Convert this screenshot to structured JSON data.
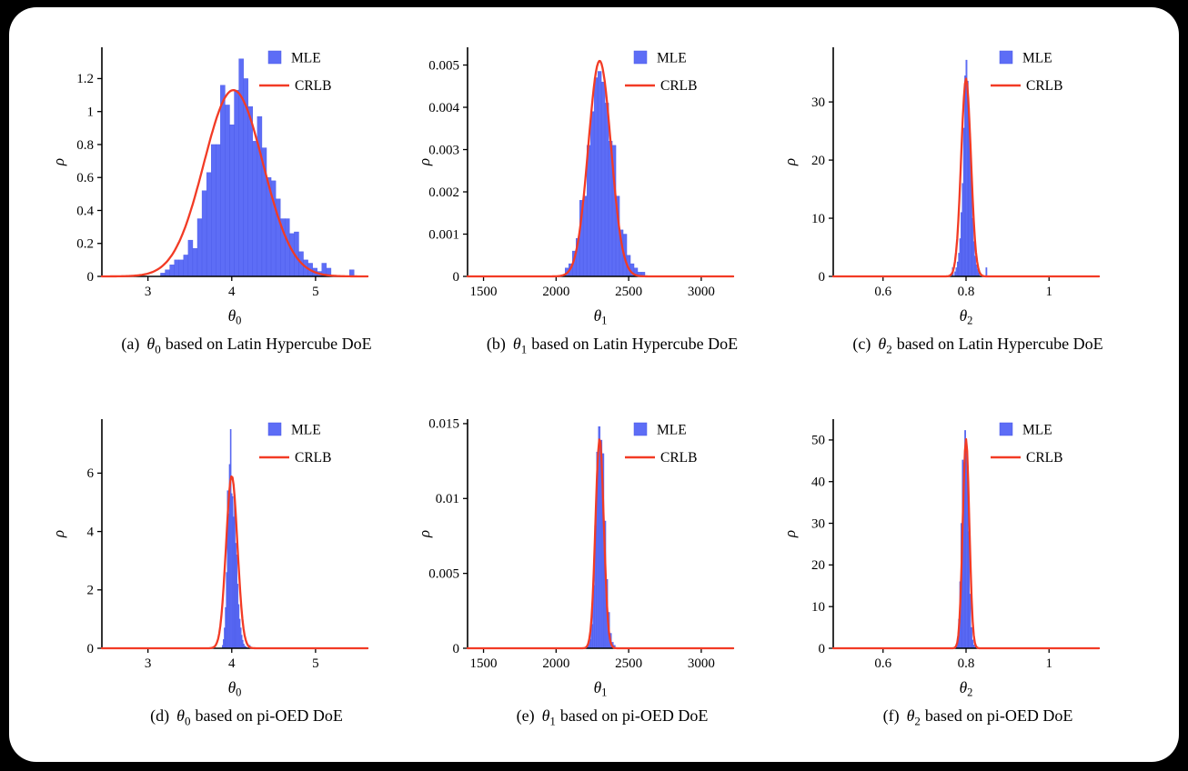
{
  "canvas": {
    "page_background": "#000000",
    "card_background": "#ffffff"
  },
  "colors": {
    "histogram_fill": "#5D6DF6",
    "histogram_edge": "#4858E8",
    "curve_red": "#F23B25",
    "axis": "#000000",
    "text": "#000000"
  },
  "legend": {
    "mle_label": "MLE",
    "crlb_label": "CRLB"
  },
  "chart_data": [
    {
      "type": "histogram",
      "caption_prefix": "(a)",
      "param_symbol": "θ",
      "param_subscript": "0",
      "caption_text": "based on Latin Hypercube DoE",
      "ylabel": "ρ",
      "xlim": [
        2.45,
        5.62
      ],
      "ylim": [
        0,
        1.39
      ],
      "x_tick_values": [
        3,
        4,
        5
      ],
      "x_tick_labels": [
        "3",
        "4",
        "5"
      ],
      "y_tick_values": [
        0,
        0.2,
        0.4,
        0.6,
        0.8,
        1,
        1.2
      ],
      "y_tick_labels": [
        "0",
        "0.2",
        "0.4",
        "0.6",
        "0.8",
        "1",
        "1.2"
      ],
      "hist": {
        "bin_start": 3.15,
        "bin_width": 0.055,
        "heights": [
          0.02,
          0.04,
          0.07,
          0.1,
          0.1,
          0.13,
          0.22,
          0.17,
          0.35,
          0.52,
          0.63,
          0.8,
          0.8,
          1.16,
          1.04,
          0.92,
          1.13,
          1.32,
          1.2,
          1.03,
          0.82,
          0.97,
          0.78,
          0.6,
          0.58,
          0.47,
          0.35,
          0.35,
          0.26,
          0.27,
          0.15,
          0.1,
          0.08,
          0.05,
          0.03,
          0.08,
          0.05,
          0,
          0,
          0,
          0,
          0.04
        ]
      },
      "curve": {
        "shape": "gaussian",
        "mean": 4.02,
        "sigma": 0.353,
        "peak": 1.13
      }
    },
    {
      "type": "histogram",
      "caption_prefix": "(b)",
      "param_symbol": "θ",
      "param_subscript": "1",
      "caption_text": "based on Latin Hypercube DoE",
      "ylabel": "ρ",
      "xlim": [
        1390,
        3220
      ],
      "ylim": [
        0,
        0.00542
      ],
      "x_tick_values": [
        1500,
        2000,
        2500,
        3000
      ],
      "x_tick_labels": [
        "1500",
        "2000",
        "2500",
        "3000"
      ],
      "y_tick_values": [
        0,
        0.001,
        0.002,
        0.003,
        0.004,
        0.005
      ],
      "y_tick_labels": [
        "0",
        "0.001",
        "0.002",
        "0.003",
        "0.004",
        "0.005"
      ],
      "hist": {
        "bin_start": 2062,
        "bin_width": 25,
        "heights": [
          0.0002,
          0.0003,
          0.0006,
          0.0009,
          0.0018,
          0.0019,
          0.0031,
          0.0039,
          0.0047,
          0.00485,
          0.0046,
          0.0041,
          0.0032,
          0.0031,
          0.0019,
          0.0011,
          0.001,
          0.0005,
          0.0003,
          0.0002,
          0.0001,
          0.0001
        ]
      },
      "curve": {
        "shape": "gaussian",
        "mean": 2300,
        "sigma": 78,
        "peak": 0.0051
      }
    },
    {
      "type": "histogram",
      "caption_prefix": "(c)",
      "param_symbol": "θ",
      "param_subscript": "2",
      "caption_text": "based on Latin Hypercube DoE",
      "ylabel": "ρ",
      "xlim": [
        0.48,
        1.12
      ],
      "ylim": [
        0,
        39.4
      ],
      "x_tick_values": [
        0.6,
        0.8,
        1
      ],
      "x_tick_labels": [
        "0.6",
        "0.8",
        "1"
      ],
      "y_tick_values": [
        0,
        10,
        20,
        30
      ],
      "y_tick_labels": [
        "0",
        "10",
        "20",
        "30"
      ],
      "hist": {
        "bin_start": 0.7665,
        "bin_width": 0.003,
        "heights": [
          1.5,
          0,
          0.8,
          1.5,
          2.5,
          4,
          6.5,
          11,
          16,
          25.5,
          34.5,
          37.2,
          33.6,
          29,
          24.5,
          17,
          10,
          6,
          3.5,
          2,
          1.2,
          0.6,
          0,
          0,
          0,
          0,
          0,
          1.5
        ]
      },
      "curve": {
        "shape": "gaussian",
        "mean": 0.8,
        "sigma": 0.0117,
        "peak": 34
      }
    },
    {
      "type": "histogram",
      "caption_prefix": "(d)",
      "param_symbol": "θ",
      "param_subscript": "0",
      "caption_text": "based on pi-OED DoE",
      "ylabel": "ρ",
      "xlim": [
        2.45,
        5.62
      ],
      "ylim": [
        0,
        7.85
      ],
      "x_tick_values": [
        3,
        4,
        5
      ],
      "x_tick_labels": [
        "3",
        "4",
        "5"
      ],
      "y_tick_values": [
        0,
        2,
        4,
        6
      ],
      "y_tick_labels": [
        "0",
        "2",
        "4",
        "6"
      ],
      "hist": {
        "bin_start": 3.885,
        "bin_width": 0.012,
        "heights": [
          0.1,
          0.3,
          0.7,
          1.4,
          2.6,
          5.4,
          4.6,
          6.3,
          7.5,
          5.3,
          5.2,
          4.5,
          5.25,
          3.6,
          3.2,
          2.2,
          1.5,
          1.0,
          0.7,
          0.45,
          0.28,
          0.15,
          0.08,
          0.05,
          0.03,
          0,
          0,
          0.1
        ]
      },
      "curve": {
        "shape": "gaussian",
        "mean": 4.0,
        "sigma": 0.0676,
        "peak": 5.9
      }
    },
    {
      "type": "histogram",
      "caption_prefix": "(e)",
      "param_symbol": "θ",
      "param_subscript": "1",
      "caption_text": "based on pi-OED DoE",
      "ylabel": "ρ",
      "xlim": [
        1390,
        3220
      ],
      "ylim": [
        0,
        0.0153
      ],
      "x_tick_values": [
        1500,
        2000,
        2500,
        3000
      ],
      "x_tick_labels": [
        "1500",
        "2000",
        "2500",
        "3000"
      ],
      "y_tick_values": [
        0,
        0.005,
        0.01,
        0.015
      ],
      "y_tick_labels": [
        "0",
        "0.005",
        "0.01",
        "0.015"
      ],
      "hist": {
        "bin_start": 2213,
        "bin_width": 13,
        "heights": [
          0.0002,
          0.0006,
          0.0016,
          0.0042,
          0.0082,
          0.0131,
          0.0148,
          0.0139,
          0.013,
          0.0085,
          0.0046,
          0.0024,
          0.001,
          0.0004,
          0.0002
        ]
      },
      "curve": {
        "shape": "gaussian",
        "mean": 2300,
        "sigma": 28.5,
        "peak": 0.014
      }
    },
    {
      "type": "histogram",
      "caption_prefix": "(f)",
      "param_symbol": "θ",
      "param_subscript": "2",
      "caption_text": "based on pi-OED DoE",
      "ylabel": "ρ",
      "xlim": [
        0.48,
        1.12
      ],
      "ylim": [
        0,
        55
      ],
      "x_tick_values": [
        0.6,
        0.8,
        1
      ],
      "x_tick_labels": [
        "0.6",
        "0.8",
        "1"
      ],
      "y_tick_values": [
        0,
        10,
        20,
        30,
        40,
        50
      ],
      "y_tick_labels": [
        "0",
        "10",
        "20",
        "30",
        "40",
        "50"
      ],
      "hist": {
        "bin_start": 0.7755,
        "bin_width": 0.003,
        "heights": [
          0.8,
          2.5,
          7,
          16,
          30,
          45.2,
          44.6,
          52.3,
          47.3,
          43,
          28,
          13,
          5,
          2,
          0.8,
          0.3
        ]
      },
      "curve": {
        "shape": "gaussian",
        "mean": 0.8,
        "sigma": 0.0079,
        "peak": 50.2
      }
    }
  ]
}
